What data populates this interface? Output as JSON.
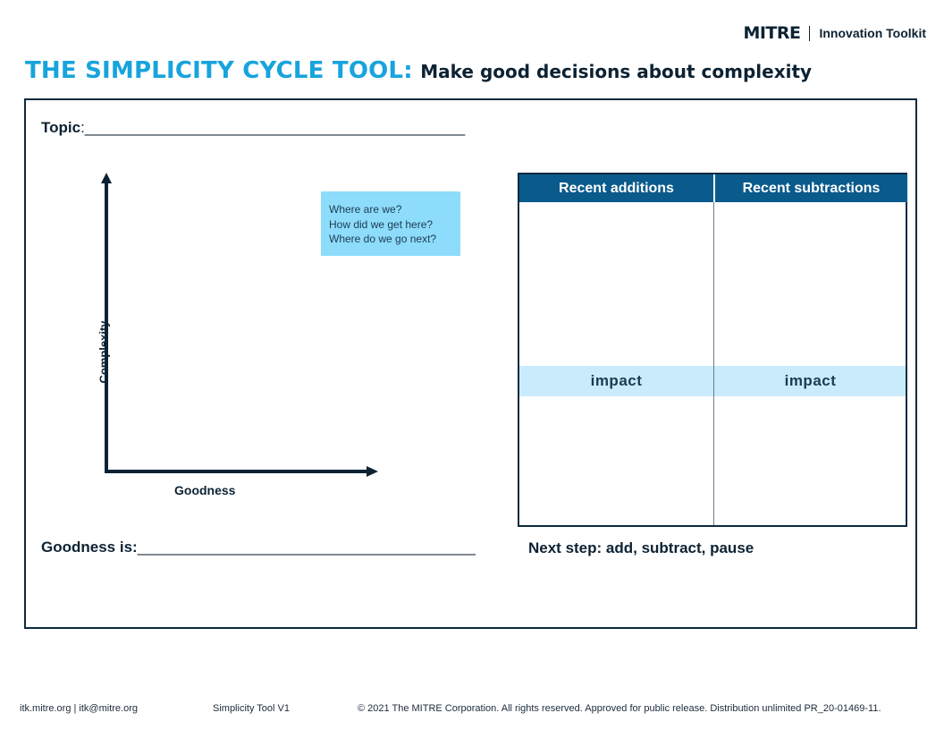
{
  "header": {
    "brand_logo": "MITRE",
    "brand_toolkit": "Innovation Toolkit"
  },
  "title": {
    "main": "THE SIMPLICITY CYCLE TOOL:",
    "sub": "Make good decisions about complexity"
  },
  "worksheet": {
    "topic_label": "Topic",
    "topic_blank": ":_____________________________________________",
    "goodness_label": "Goodness is:",
    "goodness_blank": "________________________________________",
    "next_step": "Next step: add, subtract, pause"
  },
  "chart": {
    "y_axis_label": "Complexity",
    "x_axis_label": "Goodness",
    "axis_color": "#0c2233"
  },
  "note": {
    "lines": [
      "Where are we?",
      "How did we get here?",
      "Where do we go next?"
    ],
    "color": "#8ddcfb"
  },
  "table": {
    "headers": [
      "Recent additions",
      "Recent subtractions"
    ],
    "impact_labels": [
      "impact",
      "impact"
    ],
    "header_color": "#0a5a8c",
    "impact_color": "#c9ebfb"
  },
  "footer": {
    "contact": "itk.mitre.org | itk@mitre.org",
    "version": "Simplicity Tool V1",
    "copyright": "© 2021 The MITRE Corporation. All rights reserved. Approved for public release. Distribution unlimited PR_20-01469-11."
  },
  "colors": {
    "accent": "#17a4dd",
    "navy": "#0c2233"
  }
}
